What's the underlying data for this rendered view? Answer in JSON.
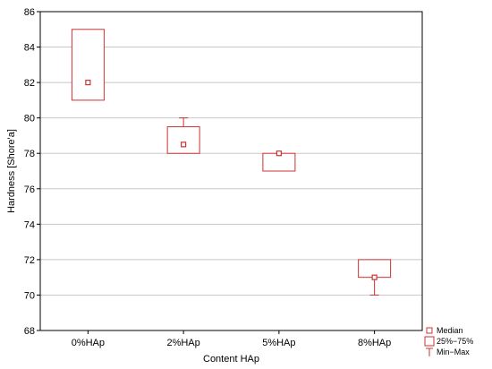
{
  "chart_data": {
    "type": "boxplot",
    "title": "",
    "xlabel": "Content HAp",
    "ylabel": "Hardness [Shore'a]",
    "ylim": [
      68,
      86
    ],
    "yticks": [
      68,
      70,
      72,
      74,
      76,
      78,
      80,
      82,
      84,
      86
    ],
    "grid": true,
    "legend_position": "bottom-right",
    "categories": [
      "0%HAp",
      "2%HAp",
      "5%HAp",
      "8%HAp"
    ],
    "series": [
      {
        "category": "0%HAp",
        "min": 81,
        "q1": 81,
        "median": 82,
        "q3": 85,
        "max": 85
      },
      {
        "category": "2%HAp",
        "min": 78,
        "q1": 78,
        "median": 78.5,
        "q3": 79.5,
        "max": 80
      },
      {
        "category": "5%HAp",
        "min": 77,
        "q1": 77,
        "median": 78,
        "q3": 78,
        "max": 78
      },
      {
        "category": "8%HAp",
        "min": 70,
        "q1": 71,
        "median": 71,
        "q3": 72,
        "max": 72
      }
    ],
    "legend": {
      "median": "Median",
      "box": "25%−75%",
      "range": "Min−Max"
    },
    "colors": {
      "box": "#cc3333",
      "grid": "#c8c8c8",
      "axis": "#000000"
    }
  }
}
